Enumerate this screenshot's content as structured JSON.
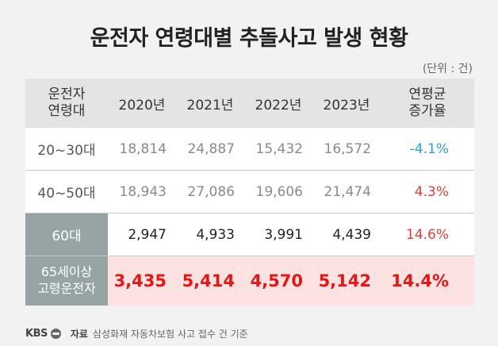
{
  "title": "운전자 연령대별 추돌사고 발생 현황",
  "unit": "(단위 : 건)",
  "table": {
    "header": [
      "운전자\n연령대",
      "2020년",
      "2021년",
      "2022년",
      "2023년",
      "연평균\n증가율"
    ],
    "rows": [
      {
        "label": "20~30대",
        "values": [
          "18,814",
          "24,887",
          "15,432",
          "16,572"
        ],
        "rate": "-4.1%"
      },
      {
        "label": "40~50대",
        "values": [
          "18,943",
          "27,086",
          "19,606",
          "21,474"
        ],
        "rate": "4.3%"
      },
      {
        "label": "60대",
        "values": [
          "2,947",
          "4,933",
          "3,991",
          "4,439"
        ],
        "rate": "14.6%"
      },
      {
        "label": "65세이상\n고령운전자",
        "values": [
          "3,435",
          "5,414",
          "4,570",
          "5,142"
        ],
        "rate": "14.4%"
      }
    ]
  },
  "footer": {
    "logo": "KBS",
    "source_label": "자료",
    "source_text": "삼성화재 자동차보험 사고 접수 건 기준"
  },
  "colors": {
    "highlight_row_bg": "#fde2e2",
    "highlight_text": "#e41616",
    "negative_rate": "#2b9fd6",
    "label_cell_bg": "#96a4a6"
  }
}
